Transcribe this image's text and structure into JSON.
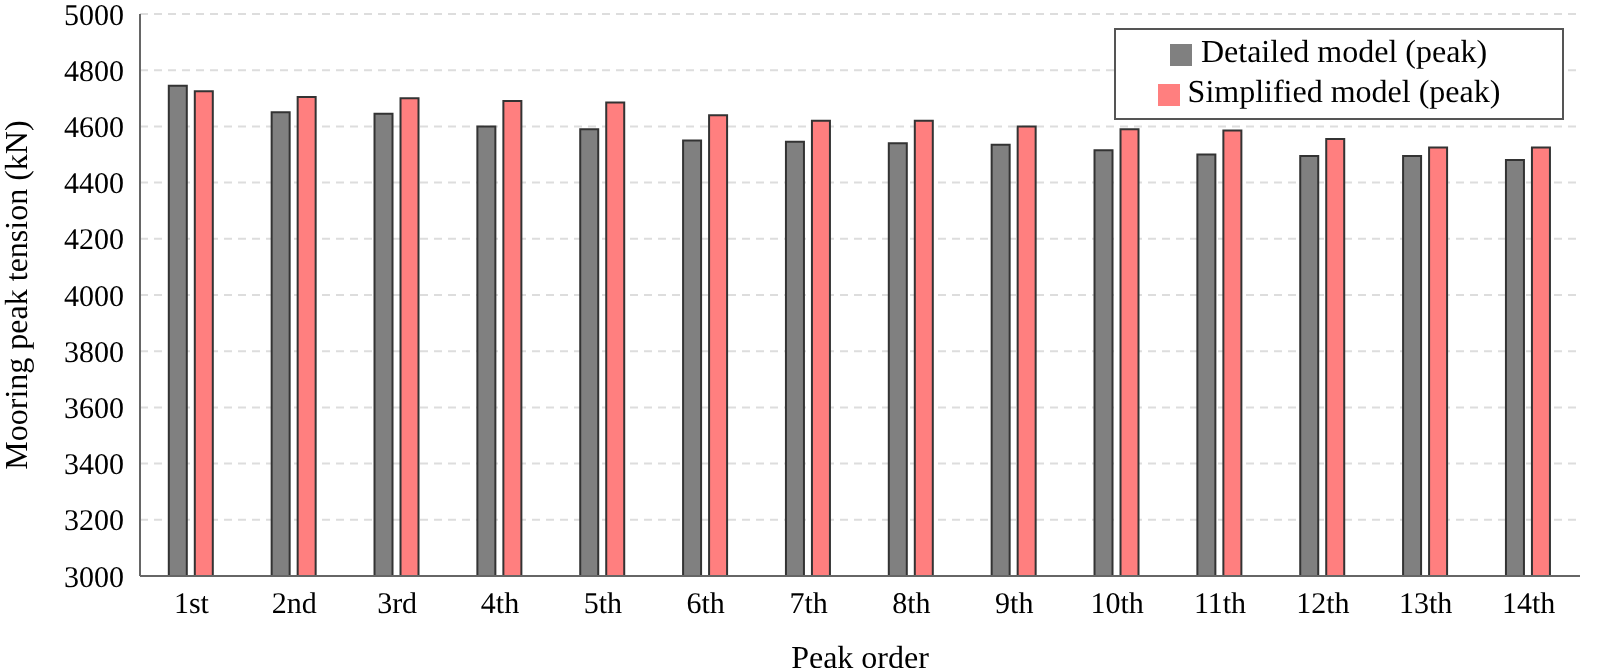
{
  "chart_data": {
    "type": "bar",
    "xlabel": "Peak order",
    "ylabel": "Mooring peak tension (kN)",
    "categories": [
      "1st",
      "2nd",
      "3rd",
      "4th",
      "5th",
      "6th",
      "7th",
      "8th",
      "9th",
      "10th",
      "11th",
      "12th",
      "13th",
      "14th"
    ],
    "series": [
      {
        "name": "Detailed model (peak)",
        "color": "#808080",
        "values": [
          4745,
          4650,
          4645,
          4600,
          4590,
          4550,
          4545,
          4540,
          4535,
          4515,
          4500,
          4495,
          4495,
          4480
        ]
      },
      {
        "name": "Simplified model (peak)",
        "color": "#ff7f7f",
        "values": [
          4725,
          4705,
          4700,
          4690,
          4685,
          4640,
          4620,
          4620,
          4600,
          4590,
          4585,
          4555,
          4525,
          4525
        ]
      }
    ],
    "ylim": [
      3000,
      5000
    ],
    "yticks": [
      3000,
      3200,
      3400,
      3600,
      3800,
      4000,
      4200,
      4400,
      4600,
      4800,
      5000
    ],
    "grid": "y",
    "legend": "top right"
  }
}
